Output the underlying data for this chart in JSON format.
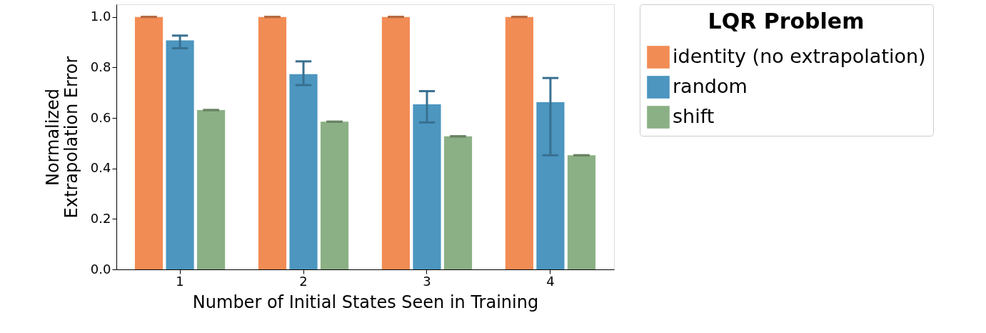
{
  "chart_data": {
    "type": "bar",
    "xlabel": "Number of Initial States Seen in Training",
    "ylabel": "Normalized\nExtrapolation Error",
    "legend_title": "LQR Problem",
    "categories": [
      "1",
      "2",
      "3",
      "4"
    ],
    "series": [
      {
        "name": "identity (no extrapolation)",
        "color": "#f28c55",
        "values": [
          1.0,
          1.0,
          1.0,
          1.0
        ],
        "errors": [
          0,
          0,
          0,
          0
        ]
      },
      {
        "name": "random",
        "color": "#4c96c0",
        "values": [
          0.907,
          0.773,
          0.654,
          0.662
        ],
        "errors": [
          [
            0.876,
            0.926
          ],
          [
            0.73,
            0.824
          ],
          [
            0.582,
            0.706
          ],
          [
            0.452,
            0.758
          ]
        ]
      },
      {
        "name": "shift",
        "color": "#8bb085",
        "values": [
          0.631,
          0.585,
          0.527,
          0.452
        ],
        "errors": [
          0,
          0,
          0,
          0
        ]
      }
    ],
    "ylim": [
      0,
      1.05
    ],
    "yticks": [
      {
        "value": 0,
        "label": "0.0"
      },
      {
        "value": 0.2,
        "label": "0.2"
      },
      {
        "value": 0.4,
        "label": "0.4"
      },
      {
        "value": 0.6,
        "label": "0.6"
      },
      {
        "value": 0.8,
        "label": "0.8"
      },
      {
        "value": 1.0,
        "label": "1.0"
      }
    ],
    "grid": false,
    "legend": "right"
  }
}
